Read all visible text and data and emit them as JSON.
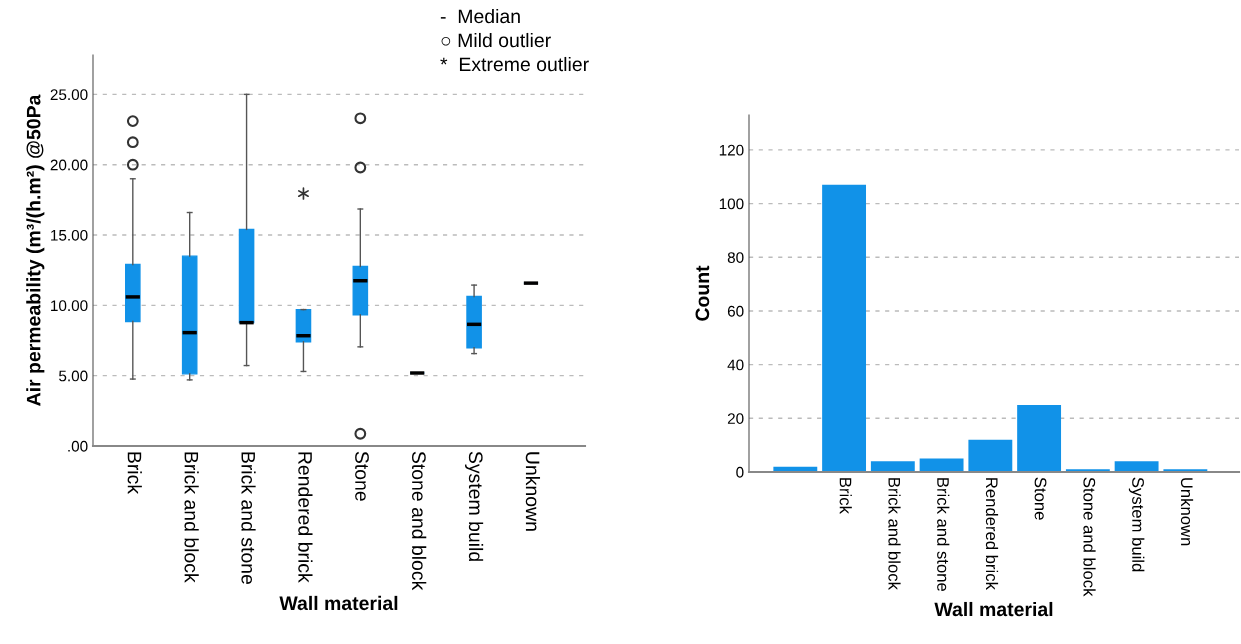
{
  "chart_data": [
    {
      "type": "box",
      "xlabel": "Wall material",
      "ylabel": "Air permeability (m³/(h.m²) @50Pa",
      "categories": [
        "Brick",
        "Brick and block",
        "Brick and stone",
        "Rendered brick",
        "Stone",
        "Stone and block",
        "System build",
        "Unknown"
      ],
      "color": "#1192e8",
      "boxes": [
        {
          "low": 4.76,
          "q1": 8.85,
          "median": 10.6,
          "q3": 12.9,
          "high": 19.0,
          "outliers": [
            23.1,
            21.6,
            20.0
          ]
        },
        {
          "low": 4.7,
          "q1": 5.13,
          "median": 8.06,
          "q3": 13.5,
          "high": 16.6
        },
        {
          "low": 5.72,
          "q1": 8.77,
          "median": 8.77,
          "q3": 15.4,
          "high": 25.0
        },
        {
          "low": 5.3,
          "q1": 7.41,
          "median": 7.84,
          "q3": 9.7,
          "high": 9.7
        },
        {
          "low": 7.05,
          "q1": 9.33,
          "median": 11.75,
          "q3": 12.77,
          "high": 16.85,
          "outliers": [
            23.3,
            19.8,
            0.87
          ]
        },
        {
          "low": 5.19,
          "q1": 5.19,
          "median": 5.19,
          "q3": 5.19,
          "high": 5.19
        },
        {
          "low": 6.57,
          "q1": 6.99,
          "median": 8.65,
          "q3": 10.63,
          "high": 11.44
        },
        {
          "low": 11.58,
          "q1": 11.58,
          "median": 11.58,
          "q3": 11.58,
          "high": 11.58
        }
      ],
      "series": [
        {
          "type": "scatter",
          "x": [
            "Rendered brick"
          ],
          "values": [
            17.95
          ],
          "color": "#333333",
          "marker": "cross"
        }
      ],
      "ylim": [
        0,
        27.8
      ],
      "yticks": [
        {
          "value": 0,
          "label": ".00"
        },
        {
          "value": 5,
          "label": "5.00"
        },
        {
          "value": 10,
          "label": "10.00"
        },
        {
          "value": 15,
          "label": "15.00"
        },
        {
          "value": 20,
          "label": "20.00"
        },
        {
          "value": 25,
          "label": "25.00"
        }
      ],
      "grid": "y",
      "annotations": [
        "-  Median",
        "○ Mild outlier",
        "*  Extreme outlier"
      ]
    },
    {
      "type": "bar",
      "xlabel": "Wall material",
      "ylabel": "Count",
      "categories": [
        null,
        "Brick",
        "Brick and block",
        "Brick and stone",
        "Rendered brick",
        "Stone",
        "Stone and block",
        "System build",
        "Unknown"
      ],
      "values": [
        2,
        107,
        4,
        5,
        12,
        25,
        1,
        4,
        1
      ],
      "color": "#1192e8",
      "ylim": [
        0,
        133
      ],
      "yticks": [
        0,
        20,
        40,
        60,
        80,
        100,
        120
      ],
      "grid": "y"
    }
  ]
}
